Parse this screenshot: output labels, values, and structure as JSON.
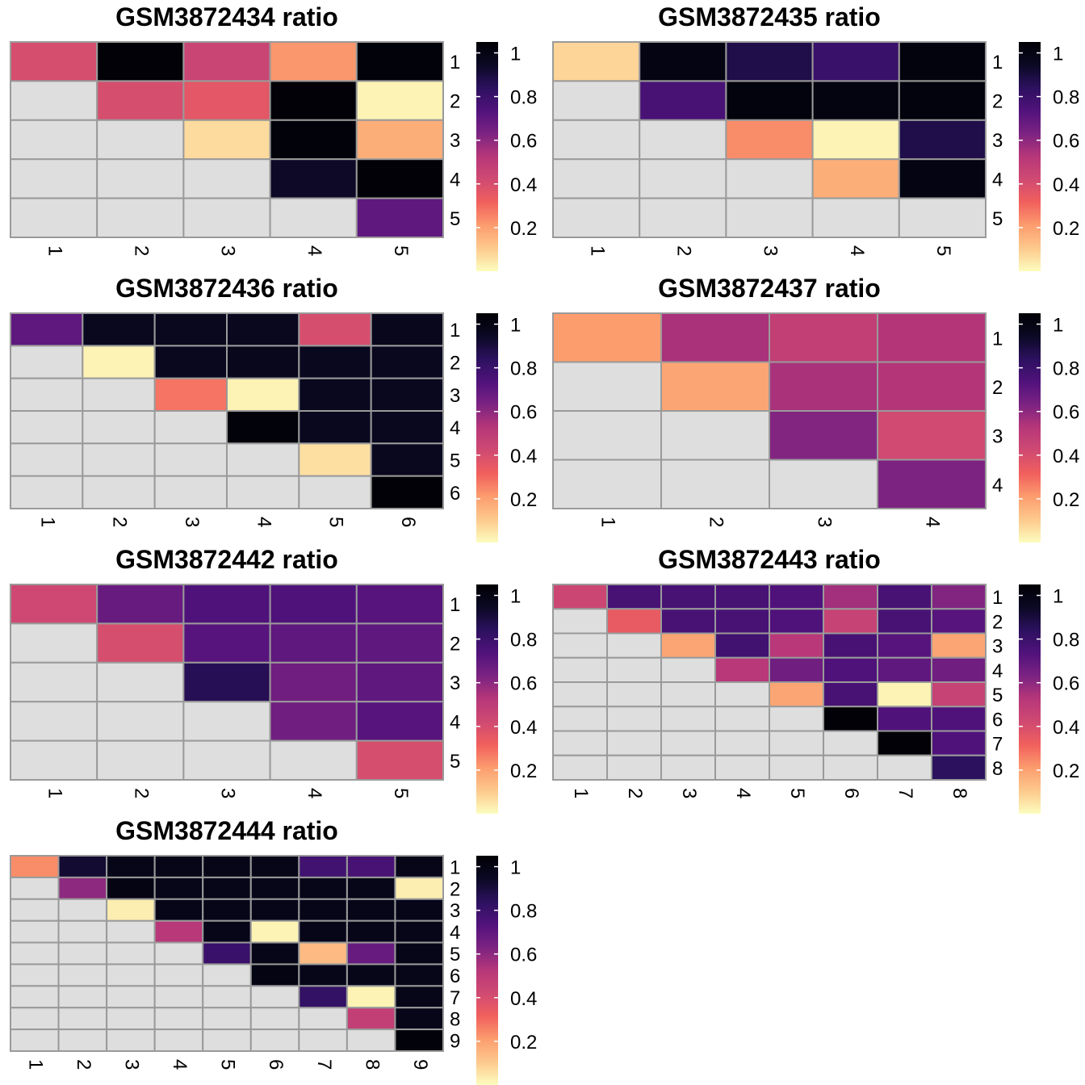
{
  "colors": {
    "na_cell": "#dedede",
    "grid": "#9a9a9a",
    "scale": [
      "#fcfdbf",
      "#fdc98c",
      "#fc9d6e",
      "#f1605d",
      "#d04a72",
      "#b73779",
      "#7c2382",
      "#51127c",
      "#2c115f",
      "#0b0924",
      "#000004"
    ]
  },
  "chart_data": [
    {
      "type": "heatmap",
      "title": "GSM3872434 ratio",
      "x_labels": [
        "1",
        "2",
        "3",
        "4",
        "5"
      ],
      "y_labels": [
        "1",
        "2",
        "3",
        "4",
        "5"
      ],
      "legend_ticks": [
        "1",
        "0.8",
        "0.6",
        "0.4",
        "0.2"
      ],
      "legend_range": [
        0.0,
        1.05
      ],
      "values": [
        [
          0.4,
          1.04,
          0.45,
          0.22,
          1.03
        ],
        [
          null,
          0.4,
          0.36,
          1.04,
          0.02
        ],
        [
          null,
          null,
          0.07,
          1.03,
          0.17
        ],
        [
          null,
          null,
          null,
          0.94,
          1.04
        ],
        [
          null,
          null,
          null,
          null,
          0.7
        ]
      ]
    },
    {
      "type": "heatmap",
      "title": "GSM3872435 ratio",
      "x_labels": [
        "1",
        "2",
        "3",
        "4",
        "5"
      ],
      "y_labels": [
        "1",
        "2",
        "3",
        "4",
        "5"
      ],
      "legend_ticks": [
        "1",
        "0.8",
        "0.6",
        "0.4",
        "0.2"
      ],
      "legend_range": [
        0.0,
        1.05
      ],
      "values": [
        [
          0.08,
          1.0,
          0.88,
          0.8,
          1.02
        ],
        [
          null,
          0.76,
          1.02,
          1.01,
          1.02
        ],
        [
          null,
          null,
          0.24,
          0.02,
          0.88
        ],
        [
          null,
          null,
          null,
          0.17,
          1.0
        ],
        [
          null,
          null,
          null,
          null,
          null
        ]
      ]
    },
    {
      "type": "heatmap",
      "title": "GSM3872436 ratio",
      "x_labels": [
        "1",
        "2",
        "3",
        "4",
        "5",
        "6"
      ],
      "y_labels": [
        "1",
        "2",
        "3",
        "4",
        "5",
        "6"
      ],
      "legend_ticks": [
        "1",
        "0.8",
        "0.6",
        "0.4",
        "0.2"
      ],
      "legend_range": [
        0.0,
        1.05
      ],
      "values": [
        [
          0.7,
          0.96,
          0.96,
          0.96,
          0.4,
          0.97
        ],
        [
          null,
          0.02,
          0.96,
          0.97,
          0.96,
          0.96
        ],
        [
          null,
          null,
          0.28,
          0.02,
          0.96,
          0.96
        ],
        [
          null,
          null,
          null,
          1.03,
          0.96,
          0.96
        ],
        [
          null,
          null,
          null,
          null,
          0.06,
          0.96
        ],
        [
          null,
          null,
          null,
          null,
          null,
          1.04
        ]
      ]
    },
    {
      "type": "heatmap",
      "title": "GSM3872437 ratio",
      "x_labels": [
        "1",
        "2",
        "3",
        "4"
      ],
      "y_labels": [
        "1",
        "2",
        "3",
        "4"
      ],
      "legend_ticks": [
        "1",
        "0.8",
        "0.6",
        "0.4",
        "0.2"
      ],
      "legend_range": [
        0.0,
        1.05
      ],
      "values": [
        [
          0.21,
          0.55,
          0.48,
          0.53
        ],
        [
          null,
          0.19,
          0.55,
          0.53
        ],
        [
          null,
          null,
          0.62,
          0.42
        ],
        [
          null,
          null,
          null,
          0.63
        ]
      ]
    },
    {
      "type": "heatmap",
      "title": "GSM3872442 ratio",
      "x_labels": [
        "1",
        "2",
        "3",
        "4",
        "5"
      ],
      "y_labels": [
        "1",
        "2",
        "3",
        "4",
        "5"
      ],
      "legend_ticks": [
        "1",
        "0.8",
        "0.6",
        "0.4",
        "0.2"
      ],
      "legend_range": [
        0.0,
        1.05
      ],
      "values": [
        [
          0.43,
          0.68,
          0.74,
          0.74,
          0.72
        ],
        [
          null,
          0.4,
          0.72,
          0.7,
          0.7
        ],
        [
          null,
          null,
          0.86,
          0.66,
          0.7
        ],
        [
          null,
          null,
          null,
          0.66,
          0.72
        ],
        [
          null,
          null,
          null,
          null,
          0.4
        ]
      ]
    },
    {
      "type": "heatmap",
      "title": "GSM3872443 ratio",
      "x_labels": [
        "1",
        "2",
        "3",
        "4",
        "5",
        "6",
        "7",
        "8"
      ],
      "y_labels": [
        "1",
        "2",
        "3",
        "4",
        "5",
        "6",
        "7",
        "8"
      ],
      "legend_ticks": [
        "1",
        "0.8",
        "0.6",
        "0.4",
        "0.2"
      ],
      "legend_range": [
        0.0,
        1.05
      ],
      "values": [
        [
          0.44,
          0.76,
          0.76,
          0.76,
          0.74,
          0.56,
          0.76,
          0.62
        ],
        [
          null,
          0.34,
          0.76,
          0.76,
          0.74,
          0.46,
          0.76,
          0.72
        ],
        [
          null,
          null,
          0.19,
          0.78,
          0.52,
          0.76,
          0.72,
          0.19
        ],
        [
          null,
          null,
          null,
          0.52,
          0.66,
          0.74,
          0.7,
          0.66
        ],
        [
          null,
          null,
          null,
          null,
          0.19,
          0.76,
          0.02,
          0.46
        ],
        [
          null,
          null,
          null,
          null,
          null,
          1.04,
          0.74,
          0.74
        ],
        [
          null,
          null,
          null,
          null,
          null,
          null,
          1.04,
          0.74
        ],
        [
          null,
          null,
          null,
          null,
          null,
          null,
          null,
          0.84
        ]
      ]
    },
    {
      "type": "heatmap",
      "title": "GSM3872444 ratio",
      "x_labels": [
        "1",
        "2",
        "3",
        "4",
        "5",
        "6",
        "7",
        "8",
        "9"
      ],
      "y_labels": [
        "1",
        "2",
        "3",
        "4",
        "5",
        "6",
        "7",
        "8",
        "9"
      ],
      "legend_ticks": [
        "1",
        "0.8",
        "0.6",
        "0.4",
        "0.2"
      ],
      "legend_range": [
        0.0,
        1.05
      ],
      "values": [
        [
          0.24,
          0.92,
          0.98,
          0.98,
          0.98,
          0.98,
          0.78,
          0.76,
          0.98
        ],
        [
          null,
          0.6,
          1.0,
          0.98,
          0.98,
          0.98,
          0.98,
          0.98,
          0.03
        ],
        [
          null,
          null,
          0.03,
          0.98,
          0.98,
          0.98,
          0.98,
          0.98,
          0.98
        ],
        [
          null,
          null,
          null,
          0.52,
          0.98,
          0.02,
          0.98,
          0.98,
          0.98
        ],
        [
          null,
          null,
          null,
          null,
          0.8,
          0.98,
          0.14,
          0.68,
          0.98
        ],
        [
          null,
          null,
          null,
          null,
          null,
          1.0,
          0.98,
          0.98,
          0.98
        ],
        [
          null,
          null,
          null,
          null,
          null,
          null,
          0.82,
          0.02,
          0.98
        ],
        [
          null,
          null,
          null,
          null,
          null,
          null,
          null,
          0.48,
          0.98
        ],
        [
          null,
          null,
          null,
          null,
          null,
          null,
          null,
          null,
          1.03
        ]
      ]
    }
  ]
}
